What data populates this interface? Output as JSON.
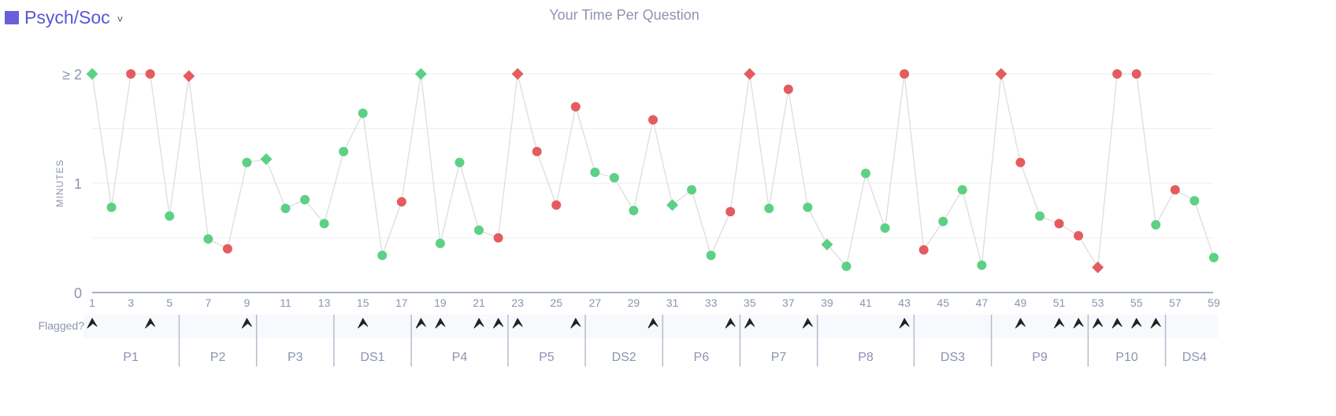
{
  "section": {
    "label": "Psych/Soc",
    "swatch_color": "#6b5fd9",
    "chevron_icon": "chevron-down-icon"
  },
  "chart_data": {
    "type": "scatter",
    "title": "Your Time Per Question",
    "ylabel": "MINUTES",
    "ylim": [
      0,
      2
    ],
    "y_ticks": [
      0,
      1,
      2
    ],
    "y_tick_labels": [
      "0",
      "1",
      "≥ 2"
    ],
    "x_ticks": [
      1,
      3,
      5,
      7,
      9,
      11,
      13,
      15,
      17,
      19,
      21,
      23,
      25,
      27,
      29,
      31,
      33,
      35,
      37,
      39,
      41,
      43,
      45,
      47,
      49,
      51,
      53,
      55,
      57,
      59
    ],
    "grid": true,
    "colors": {
      "correct": "#5cd185",
      "incorrect": "#e45c60",
      "line": "#dddddd",
      "passage_label": "#8c94b0"
    },
    "points": [
      {
        "q": 1,
        "minutes": 2.0,
        "result": "correct",
        "marker": "diamond"
      },
      {
        "q": 2,
        "minutes": 0.78,
        "result": "correct",
        "marker": "circle"
      },
      {
        "q": 3,
        "minutes": 2.0,
        "result": "incorrect",
        "marker": "circle"
      },
      {
        "q": 4,
        "minutes": 2.0,
        "result": "incorrect",
        "marker": "circle"
      },
      {
        "q": 5,
        "minutes": 0.7,
        "result": "correct",
        "marker": "circle"
      },
      {
        "q": 6,
        "minutes": 1.98,
        "result": "incorrect",
        "marker": "diamond"
      },
      {
        "q": 7,
        "minutes": 0.49,
        "result": "correct",
        "marker": "circle"
      },
      {
        "q": 8,
        "minutes": 0.4,
        "result": "incorrect",
        "marker": "circle"
      },
      {
        "q": 9,
        "minutes": 1.19,
        "result": "correct",
        "marker": "circle"
      },
      {
        "q": 10,
        "minutes": 1.22,
        "result": "correct",
        "marker": "diamond"
      },
      {
        "q": 11,
        "minutes": 0.77,
        "result": "correct",
        "marker": "circle"
      },
      {
        "q": 12,
        "minutes": 0.85,
        "result": "correct",
        "marker": "circle"
      },
      {
        "q": 13,
        "minutes": 0.63,
        "result": "correct",
        "marker": "circle"
      },
      {
        "q": 14,
        "minutes": 1.29,
        "result": "correct",
        "marker": "circle"
      },
      {
        "q": 15,
        "minutes": 1.64,
        "result": "correct",
        "marker": "circle"
      },
      {
        "q": 16,
        "minutes": 0.34,
        "result": "correct",
        "marker": "circle"
      },
      {
        "q": 17,
        "minutes": 0.83,
        "result": "incorrect",
        "marker": "circle"
      },
      {
        "q": 18,
        "minutes": 2.0,
        "result": "correct",
        "marker": "diamond"
      },
      {
        "q": 19,
        "minutes": 0.45,
        "result": "correct",
        "marker": "circle"
      },
      {
        "q": 20,
        "minutes": 1.19,
        "result": "correct",
        "marker": "circle"
      },
      {
        "q": 21,
        "minutes": 0.57,
        "result": "correct",
        "marker": "circle"
      },
      {
        "q": 22,
        "minutes": 0.5,
        "result": "incorrect",
        "marker": "circle"
      },
      {
        "q": 23,
        "minutes": 2.0,
        "result": "incorrect",
        "marker": "diamond"
      },
      {
        "q": 24,
        "minutes": 1.29,
        "result": "incorrect",
        "marker": "circle"
      },
      {
        "q": 25,
        "minutes": 0.8,
        "result": "incorrect",
        "marker": "circle"
      },
      {
        "q": 26,
        "minutes": 1.7,
        "result": "incorrect",
        "marker": "circle"
      },
      {
        "q": 27,
        "minutes": 1.1,
        "result": "correct",
        "marker": "circle"
      },
      {
        "q": 28,
        "minutes": 1.05,
        "result": "correct",
        "marker": "circle"
      },
      {
        "q": 29,
        "minutes": 0.75,
        "result": "correct",
        "marker": "circle"
      },
      {
        "q": 30,
        "minutes": 1.58,
        "result": "incorrect",
        "marker": "circle"
      },
      {
        "q": 31,
        "minutes": 0.8,
        "result": "correct",
        "marker": "diamond"
      },
      {
        "q": 32,
        "minutes": 0.94,
        "result": "correct",
        "marker": "circle"
      },
      {
        "q": 33,
        "minutes": 0.34,
        "result": "correct",
        "marker": "circle"
      },
      {
        "q": 34,
        "minutes": 0.74,
        "result": "incorrect",
        "marker": "circle"
      },
      {
        "q": 35,
        "minutes": 2.0,
        "result": "incorrect",
        "marker": "diamond"
      },
      {
        "q": 36,
        "minutes": 0.77,
        "result": "correct",
        "marker": "circle"
      },
      {
        "q": 37,
        "minutes": 1.86,
        "result": "incorrect",
        "marker": "circle"
      },
      {
        "q": 38,
        "minutes": 0.78,
        "result": "correct",
        "marker": "circle"
      },
      {
        "q": 39,
        "minutes": 0.44,
        "result": "correct",
        "marker": "diamond"
      },
      {
        "q": 40,
        "minutes": 0.24,
        "result": "correct",
        "marker": "circle"
      },
      {
        "q": 41,
        "minutes": 1.09,
        "result": "correct",
        "marker": "circle"
      },
      {
        "q": 42,
        "minutes": 0.59,
        "result": "correct",
        "marker": "circle"
      },
      {
        "q": 43,
        "minutes": 2.0,
        "result": "incorrect",
        "marker": "circle"
      },
      {
        "q": 44,
        "minutes": 0.39,
        "result": "incorrect",
        "marker": "circle"
      },
      {
        "q": 45,
        "minutes": 0.65,
        "result": "correct",
        "marker": "circle"
      },
      {
        "q": 46,
        "minutes": 0.94,
        "result": "correct",
        "marker": "circle"
      },
      {
        "q": 47,
        "minutes": 0.25,
        "result": "correct",
        "marker": "circle"
      },
      {
        "q": 48,
        "minutes": 2.0,
        "result": "incorrect",
        "marker": "diamond"
      },
      {
        "q": 49,
        "minutes": 1.19,
        "result": "incorrect",
        "marker": "circle"
      },
      {
        "q": 50,
        "minutes": 0.7,
        "result": "correct",
        "marker": "circle"
      },
      {
        "q": 51,
        "minutes": 0.63,
        "result": "incorrect",
        "marker": "circle"
      },
      {
        "q": 52,
        "minutes": 0.52,
        "result": "incorrect",
        "marker": "circle"
      },
      {
        "q": 53,
        "minutes": 0.23,
        "result": "incorrect",
        "marker": "diamond"
      },
      {
        "q": 54,
        "minutes": 2.0,
        "result": "incorrect",
        "marker": "circle"
      },
      {
        "q": 55,
        "minutes": 2.0,
        "result": "incorrect",
        "marker": "circle"
      },
      {
        "q": 56,
        "minutes": 0.62,
        "result": "correct",
        "marker": "circle"
      },
      {
        "q": 57,
        "minutes": 0.94,
        "result": "incorrect",
        "marker": "circle"
      },
      {
        "q": 58,
        "minutes": 0.84,
        "result": "correct",
        "marker": "circle"
      },
      {
        "q": 59,
        "minutes": 0.32,
        "result": "correct",
        "marker": "circle"
      }
    ],
    "flagged_label": "Flagged?",
    "flag_icon": "flag-icon",
    "flagged_questions": [
      1,
      4,
      9,
      15,
      18,
      19,
      21,
      22,
      23,
      26,
      30,
      34,
      35,
      38,
      43,
      49,
      51,
      52,
      53,
      54,
      55,
      56
    ],
    "passages": [
      {
        "label": "P1",
        "start": 1,
        "end": 5
      },
      {
        "label": "P2",
        "start": 6,
        "end": 9
      },
      {
        "label": "P3",
        "start": 10,
        "end": 13
      },
      {
        "label": "DS1",
        "start": 14,
        "end": 17
      },
      {
        "label": "P4",
        "start": 18,
        "end": 22
      },
      {
        "label": "P5",
        "start": 23,
        "end": 26
      },
      {
        "label": "DS2",
        "start": 27,
        "end": 30
      },
      {
        "label": "P6",
        "start": 31,
        "end": 34
      },
      {
        "label": "P7",
        "start": 35,
        "end": 38
      },
      {
        "label": "P8",
        "start": 39,
        "end": 43
      },
      {
        "label": "DS3",
        "start": 44,
        "end": 47
      },
      {
        "label": "P9",
        "start": 48,
        "end": 52
      },
      {
        "label": "P10",
        "start": 53,
        "end": 56
      },
      {
        "label": "DS4",
        "start": 57,
        "end": 59
      }
    ]
  }
}
